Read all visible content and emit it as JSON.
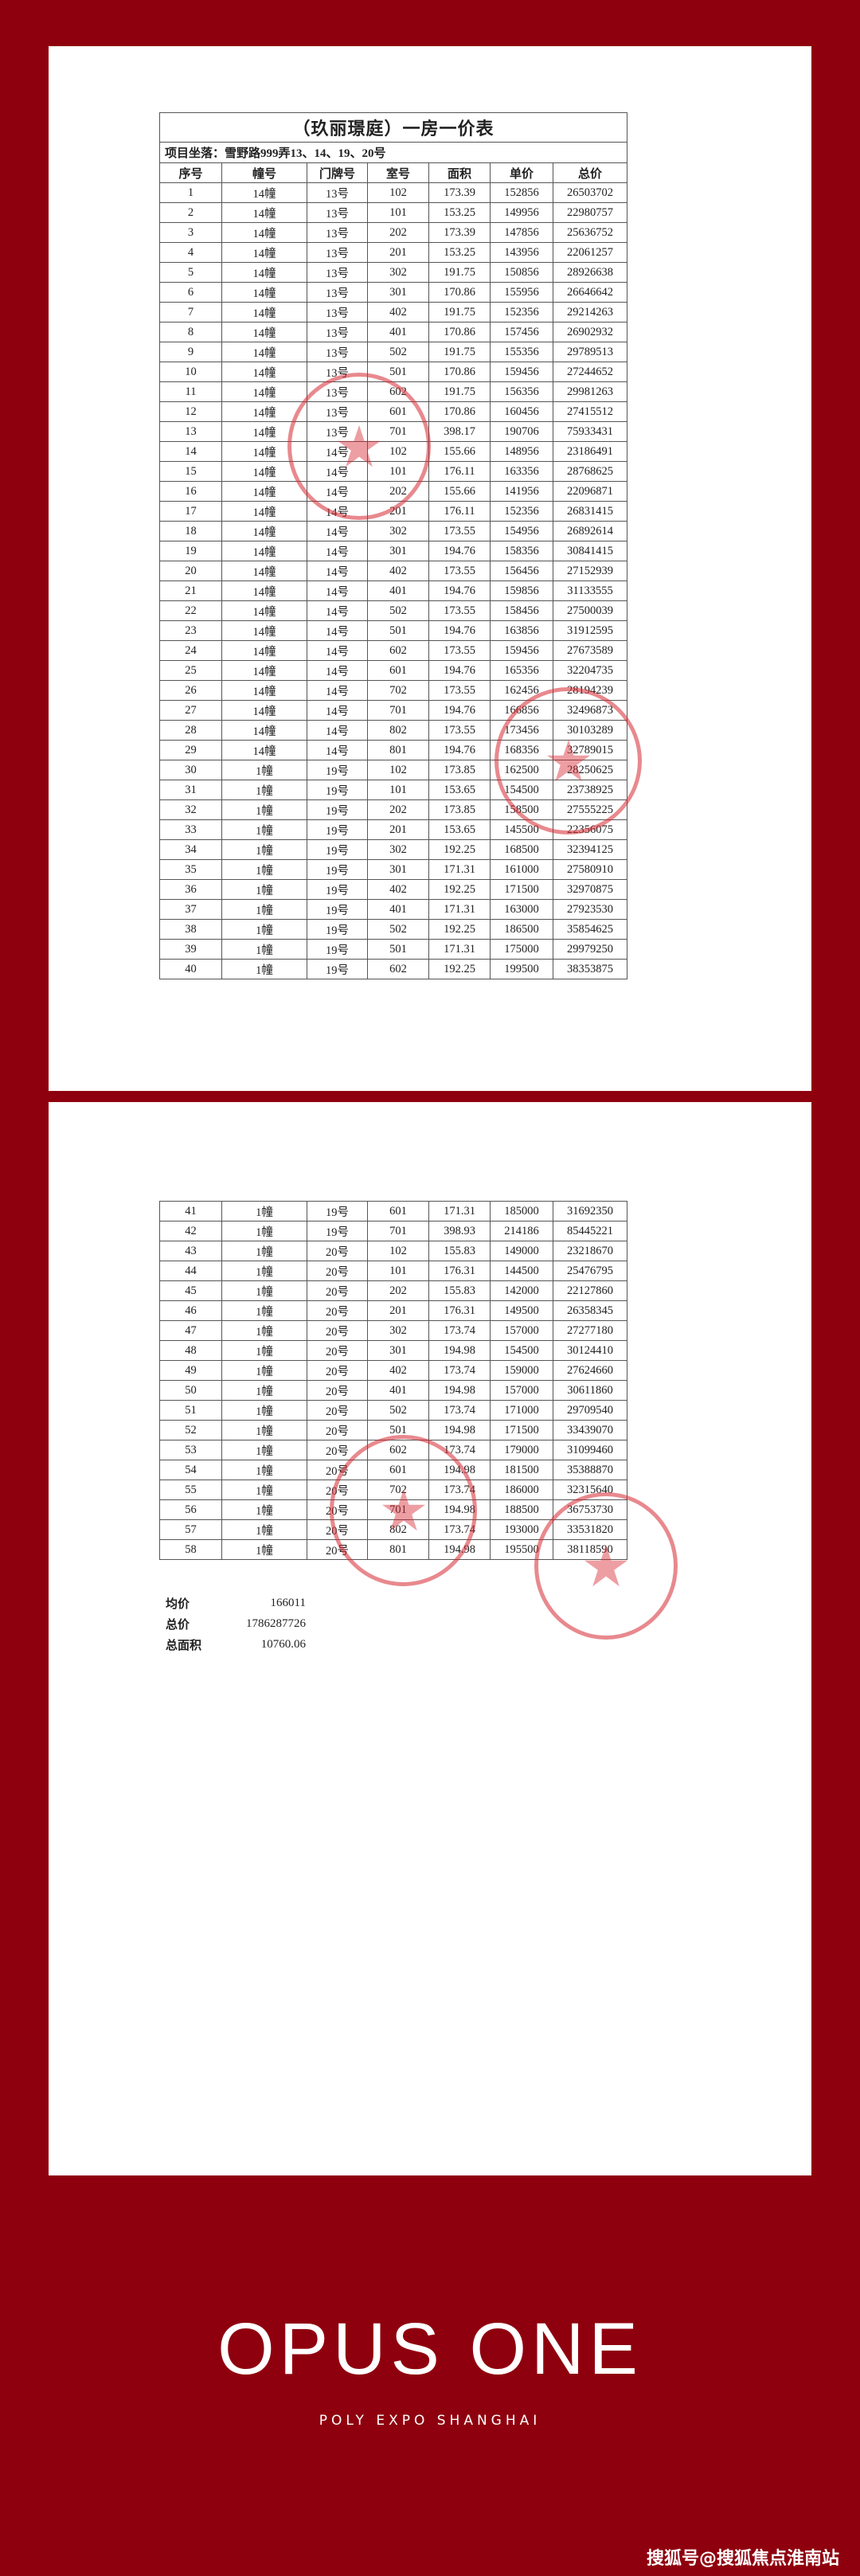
{
  "document": {
    "title": "（玖丽璟庭）一房一价表",
    "address": "项目坐落：雪野路999弄13、14、19、20号",
    "columns": [
      "序号",
      "幢号",
      "门牌号",
      "室号",
      "面积",
      "单价",
      "总价"
    ],
    "rows_page1": [
      [
        "1",
        "14幢",
        "13号",
        "102",
        "173.39",
        "152856",
        "26503702"
      ],
      [
        "2",
        "14幢",
        "13号",
        "101",
        "153.25",
        "149956",
        "22980757"
      ],
      [
        "3",
        "14幢",
        "13号",
        "202",
        "173.39",
        "147856",
        "25636752"
      ],
      [
        "4",
        "14幢",
        "13号",
        "201",
        "153.25",
        "143956",
        "22061257"
      ],
      [
        "5",
        "14幢",
        "13号",
        "302",
        "191.75",
        "150856",
        "28926638"
      ],
      [
        "6",
        "14幢",
        "13号",
        "301",
        "170.86",
        "155956",
        "26646642"
      ],
      [
        "7",
        "14幢",
        "13号",
        "402",
        "191.75",
        "152356",
        "29214263"
      ],
      [
        "8",
        "14幢",
        "13号",
        "401",
        "170.86",
        "157456",
        "26902932"
      ],
      [
        "9",
        "14幢",
        "13号",
        "502",
        "191.75",
        "155356",
        "29789513"
      ],
      [
        "10",
        "14幢",
        "13号",
        "501",
        "170.86",
        "159456",
        "27244652"
      ],
      [
        "11",
        "14幢",
        "13号",
        "602",
        "191.75",
        "156356",
        "29981263"
      ],
      [
        "12",
        "14幢",
        "13号",
        "601",
        "170.86",
        "160456",
        "27415512"
      ],
      [
        "13",
        "14幢",
        "13号",
        "701",
        "398.17",
        "190706",
        "75933431"
      ],
      [
        "14",
        "14幢",
        "14号",
        "102",
        "155.66",
        "148956",
        "23186491"
      ],
      [
        "15",
        "14幢",
        "14号",
        "101",
        "176.11",
        "163356",
        "28768625"
      ],
      [
        "16",
        "14幢",
        "14号",
        "202",
        "155.66",
        "141956",
        "22096871"
      ],
      [
        "17",
        "14幢",
        "14号",
        "201",
        "176.11",
        "152356",
        "26831415"
      ],
      [
        "18",
        "14幢",
        "14号",
        "302",
        "173.55",
        "154956",
        "26892614"
      ],
      [
        "19",
        "14幢",
        "14号",
        "301",
        "194.76",
        "158356",
        "30841415"
      ],
      [
        "20",
        "14幢",
        "14号",
        "402",
        "173.55",
        "156456",
        "27152939"
      ],
      [
        "21",
        "14幢",
        "14号",
        "401",
        "194.76",
        "159856",
        "31133555"
      ],
      [
        "22",
        "14幢",
        "14号",
        "502",
        "173.55",
        "158456",
        "27500039"
      ],
      [
        "23",
        "14幢",
        "14号",
        "501",
        "194.76",
        "163856",
        "31912595"
      ],
      [
        "24",
        "14幢",
        "14号",
        "602",
        "173.55",
        "159456",
        "27673589"
      ],
      [
        "25",
        "14幢",
        "14号",
        "601",
        "194.76",
        "165356",
        "32204735"
      ],
      [
        "26",
        "14幢",
        "14号",
        "702",
        "173.55",
        "162456",
        "28194239"
      ],
      [
        "27",
        "14幢",
        "14号",
        "701",
        "194.76",
        "166856",
        "32496873"
      ],
      [
        "28",
        "14幢",
        "14号",
        "802",
        "173.55",
        "173456",
        "30103289"
      ],
      [
        "29",
        "14幢",
        "14号",
        "801",
        "194.76",
        "168356",
        "32789015"
      ],
      [
        "30",
        "1幢",
        "19号",
        "102",
        "173.85",
        "162500",
        "28250625"
      ],
      [
        "31",
        "1幢",
        "19号",
        "101",
        "153.65",
        "154500",
        "23738925"
      ],
      [
        "32",
        "1幢",
        "19号",
        "202",
        "173.85",
        "158500",
        "27555225"
      ],
      [
        "33",
        "1幢",
        "19号",
        "201",
        "153.65",
        "145500",
        "22356075"
      ],
      [
        "34",
        "1幢",
        "19号",
        "302",
        "192.25",
        "168500",
        "32394125"
      ],
      [
        "35",
        "1幢",
        "19号",
        "301",
        "171.31",
        "161000",
        "27580910"
      ],
      [
        "36",
        "1幢",
        "19号",
        "402",
        "192.25",
        "171500",
        "32970875"
      ],
      [
        "37",
        "1幢",
        "19号",
        "401",
        "171.31",
        "163000",
        "27923530"
      ],
      [
        "38",
        "1幢",
        "19号",
        "502",
        "192.25",
        "186500",
        "35854625"
      ],
      [
        "39",
        "1幢",
        "19号",
        "501",
        "171.31",
        "175000",
        "29979250"
      ],
      [
        "40",
        "1幢",
        "19号",
        "602",
        "192.25",
        "199500",
        "38353875"
      ]
    ],
    "rows_page2": [
      [
        "41",
        "1幢",
        "19号",
        "601",
        "171.31",
        "185000",
        "31692350"
      ],
      [
        "42",
        "1幢",
        "19号",
        "701",
        "398.93",
        "214186",
        "85445221"
      ],
      [
        "43",
        "1幢",
        "20号",
        "102",
        "155.83",
        "149000",
        "23218670"
      ],
      [
        "44",
        "1幢",
        "20号",
        "101",
        "176.31",
        "144500",
        "25476795"
      ],
      [
        "45",
        "1幢",
        "20号",
        "202",
        "155.83",
        "142000",
        "22127860"
      ],
      [
        "46",
        "1幢",
        "20号",
        "201",
        "176.31",
        "149500",
        "26358345"
      ],
      [
        "47",
        "1幢",
        "20号",
        "302",
        "173.74",
        "157000",
        "27277180"
      ],
      [
        "48",
        "1幢",
        "20号",
        "301",
        "194.98",
        "154500",
        "30124410"
      ],
      [
        "49",
        "1幢",
        "20号",
        "402",
        "173.74",
        "159000",
        "27624660"
      ],
      [
        "50",
        "1幢",
        "20号",
        "401",
        "194.98",
        "157000",
        "30611860"
      ],
      [
        "51",
        "1幢",
        "20号",
        "502",
        "173.74",
        "171000",
        "29709540"
      ],
      [
        "52",
        "1幢",
        "20号",
        "501",
        "194.98",
        "171500",
        "33439070"
      ],
      [
        "53",
        "1幢",
        "20号",
        "602",
        "173.74",
        "179000",
        "31099460"
      ],
      [
        "54",
        "1幢",
        "20号",
        "601",
        "194.98",
        "181500",
        "35388870"
      ],
      [
        "55",
        "1幢",
        "20号",
        "702",
        "173.74",
        "186000",
        "32315640"
      ],
      [
        "56",
        "1幢",
        "20号",
        "701",
        "194.98",
        "188500",
        "36753730"
      ],
      [
        "57",
        "1幢",
        "20号",
        "802",
        "173.74",
        "193000",
        "33531820"
      ],
      [
        "58",
        "1幢",
        "20号",
        "801",
        "194.98",
        "195500",
        "38118590"
      ]
    ],
    "summary": {
      "avg_price_label": "均价",
      "avg_price": "166011",
      "total_price_label": "总价",
      "total_price": "1786287726",
      "total_area_label": "总面积",
      "total_area": "10760.06"
    }
  },
  "branding": {
    "title": "OPUS ONE",
    "subtitle": "POLY EXPO SHANGHAI",
    "watermark": "搜狐号@搜狐焦点淮南站"
  },
  "colors": {
    "background": "#8f000e",
    "stamp": "#d62832"
  }
}
